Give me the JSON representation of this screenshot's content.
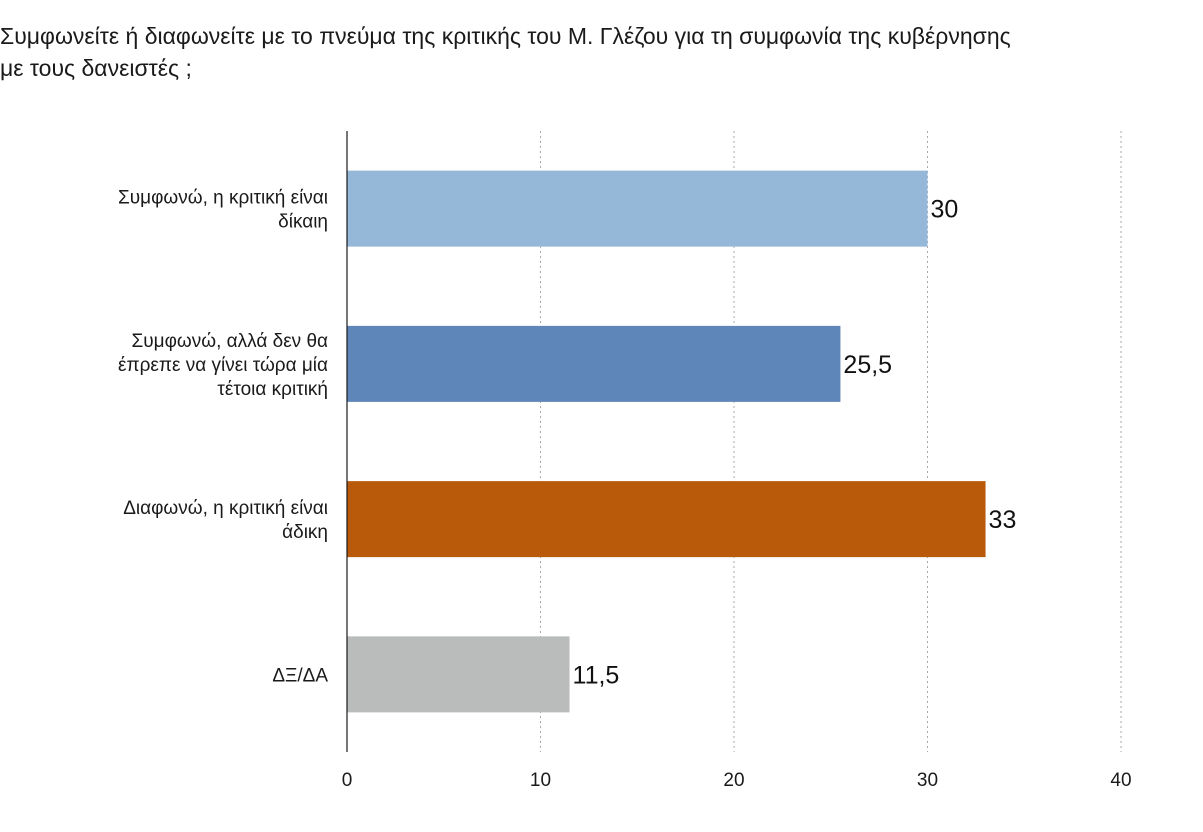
{
  "title_lines": [
    "Συμφωνείτε ή διαφωνείτε με το πνεύμα της κριτικής του Μ. Γλέζου για τη συμφωνία της κυβέρνησης",
    "με τους δανειστές ;"
  ],
  "chart_data": {
    "type": "bar",
    "orientation": "horizontal",
    "title": "Συμφωνείτε ή διαφωνείτε με το πνεύμα της κριτικής του Μ. Γλέζου για τη συμφωνία της κυβέρνησης με τους δανειστές ;",
    "categories": [
      [
        "Συμφωνώ, η κριτική είναι",
        "δίκαιη"
      ],
      [
        "Συμφωνώ, αλλά δεν θα",
        "έπρεπε να γίνει τώρα μία",
        "τέτοια κριτική"
      ],
      [
        "Διαφωνώ, η κριτική είναι",
        "άδικη"
      ],
      [
        "ΔΞ/ΔΑ"
      ]
    ],
    "values": [
      30,
      25.5,
      33,
      11.5
    ],
    "value_labels": [
      "30",
      "25,5",
      "33",
      "11,5"
    ],
    "colors": [
      "#95b8d9",
      "#5f86b8",
      "#b85a0a",
      "#b9bcbb"
    ],
    "xlim": [
      0,
      40
    ],
    "xticks": [
      0,
      10,
      20,
      30,
      40
    ],
    "xtick_labels": [
      "0",
      "10",
      "20",
      "30",
      "40"
    ],
    "grid": "vertical dotted",
    "legend": "none",
    "xlabel": "",
    "ylabel": ""
  }
}
